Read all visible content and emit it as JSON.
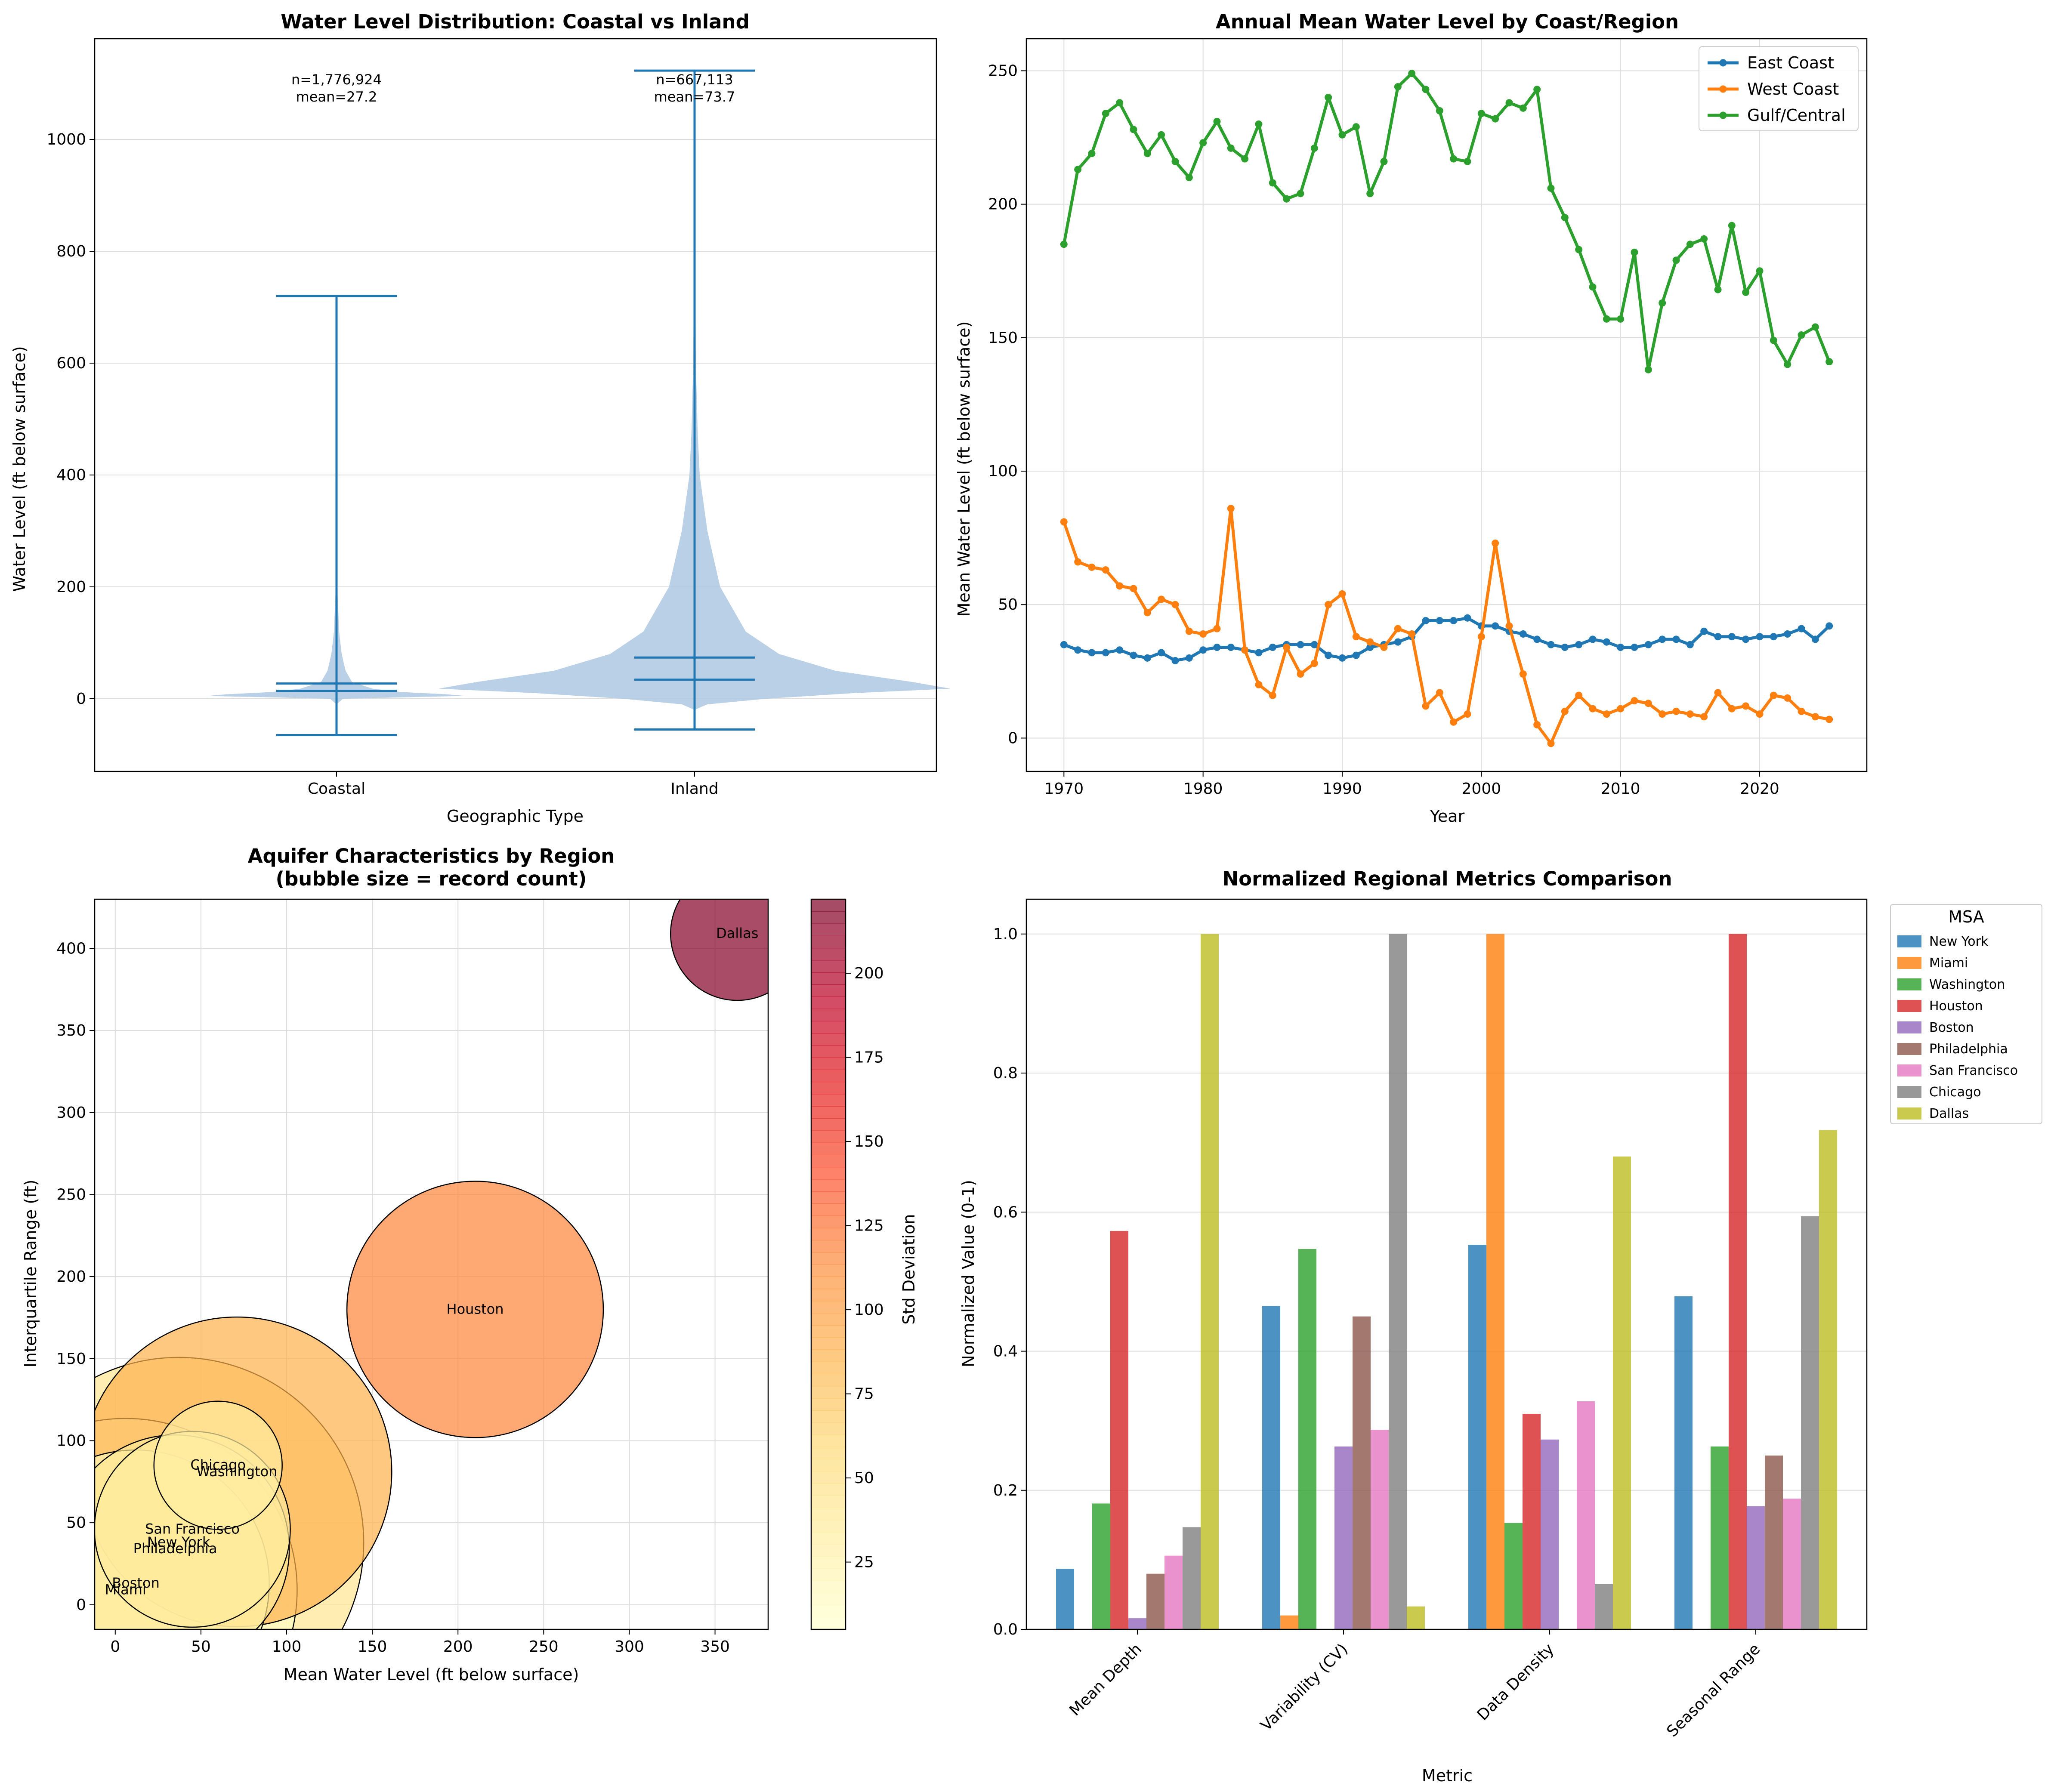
{
  "figure": {
    "panels": [
      {
        "title": "Water Level Distribution: Coastal vs Inland",
        "xlabel": "Geographic Type",
        "ylabel": "Water Level (ft below surface)",
        "yticks": [
          "0",
          "200",
          "400",
          "600",
          "800",
          "1000"
        ],
        "annotations": [
          {
            "line1": "n=1,776,924",
            "line2": "mean=27.2"
          },
          {
            "line1": "n=667,113",
            "line2": "mean=73.7"
          }
        ]
      },
      {
        "title": "Annual Mean Water Level by Coast/Region",
        "xlabel": "Year",
        "ylabel": "Mean Water Level (ft below surface)",
        "yticks": [
          "0",
          "50",
          "100",
          "150",
          "200",
          "250"
        ],
        "xticks": [
          "1970",
          "1980",
          "1990",
          "2000",
          "2010",
          "2020"
        ]
      },
      {
        "title_line1": "Aquifer Characteristics by Region",
        "title_line2": "(bubble size = record count)",
        "xlabel": "Mean Water Level (ft below surface)",
        "ylabel": "Interquartile Range (ft)",
        "colorbar_label": "Std Deviation",
        "xticks": [
          "0",
          "50",
          "100",
          "150",
          "200",
          "250",
          "300",
          "350"
        ],
        "yticks": [
          "0",
          "50",
          "100",
          "150",
          "200",
          "250",
          "300",
          "350",
          "400"
        ],
        "cbticks": [
          "25",
          "50",
          "75",
          "100",
          "125",
          "150",
          "175",
          "200"
        ]
      },
      {
        "title": "Normalized Regional Metrics Comparison",
        "xlabel": "Metric",
        "ylabel": "Normalized Value (0-1)",
        "legend_title": "MSA",
        "yticks": [
          "0.0",
          "0.2",
          "0.4",
          "0.6",
          "0.8",
          "1.0"
        ]
      }
    ]
  },
  "chart_data": [
    {
      "type": "violin",
      "title": "Water Level Distribution: Coastal vs Inland",
      "xlabel": "Geographic Type",
      "ylabel": "Water Level (ft below surface)",
      "categories": [
        "Coastal",
        "Inland"
      ],
      "ylim": [
        -130,
        1180
      ],
      "stats": [
        {
          "name": "Coastal",
          "n": "1,776,924",
          "mean": 27.2,
          "median": 14,
          "min": -65,
          "max": 720
        },
        {
          "name": "Inland",
          "n": "667,113",
          "mean": 73.7,
          "median": 34,
          "min": -55,
          "max": 1123
        }
      ],
      "grid": true,
      "body_color": "#aec8e2",
      "line_color": "#1f77b4"
    },
    {
      "type": "line",
      "title": "Annual Mean Water Level by Coast/Region",
      "xlabel": "Year",
      "ylabel": "Mean Water Level (ft below surface)",
      "xlim": [
        1967.3,
        2027.7
      ],
      "ylim": [
        -12.5,
        262
      ],
      "legend_position": "top-right",
      "x": [
        1970,
        1971,
        1972,
        1973,
        1974,
        1975,
        1976,
        1977,
        1978,
        1979,
        1980,
        1981,
        1982,
        1983,
        1984,
        1985,
        1986,
        1987,
        1988,
        1989,
        1990,
        1991,
        1992,
        1993,
        1994,
        1995,
        1996,
        1997,
        1998,
        1999,
        2000,
        2001,
        2002,
        2003,
        2004,
        2005,
        2006,
        2007,
        2008,
        2009,
        2010,
        2011,
        2012,
        2013,
        2014,
        2015,
        2016,
        2017,
        2018,
        2019,
        2020,
        2021,
        2022,
        2023,
        2024,
        2025
      ],
      "series": [
        {
          "name": "East Coast",
          "color": "#1f77b4",
          "values": [
            35,
            33,
            32,
            32,
            33,
            31,
            30,
            32,
            29,
            30,
            33,
            34,
            34,
            33,
            32,
            34,
            35,
            35,
            35,
            31,
            30,
            31,
            34,
            35,
            36,
            38,
            44,
            44,
            44,
            45,
            42,
            42,
            40,
            39,
            37,
            35,
            34,
            35,
            37,
            36,
            34,
            34,
            35,
            37,
            37,
            35,
            40,
            38,
            38,
            37,
            38,
            38,
            39,
            41,
            37,
            42
          ]
        },
        {
          "name": "West Coast",
          "color": "#ff7f0e",
          "values": [
            81,
            66,
            64,
            63,
            57,
            56,
            47,
            52,
            50,
            40,
            39,
            41,
            86,
            33,
            20,
            16,
            34,
            24,
            28,
            50,
            54,
            38,
            36,
            34,
            41,
            39,
            12,
            17,
            6,
            9,
            38,
            73,
            42,
            24,
            5,
            -2,
            10,
            16,
            11,
            9,
            11,
            14,
            13,
            9,
            10,
            9,
            8,
            17,
            11,
            12,
            9,
            16,
            15,
            10,
            8,
            7
          ]
        },
        {
          "name": "Gulf/Central",
          "color": "#2ca02c",
          "values": [
            185,
            213,
            219,
            234,
            238,
            228,
            219,
            226,
            216,
            210,
            223,
            231,
            221,
            217,
            230,
            208,
            202,
            204,
            221,
            240,
            226,
            229,
            204,
            216,
            244,
            249,
            243,
            235,
            217,
            216,
            234,
            232,
            238,
            236,
            243,
            206,
            195,
            183,
            169,
            157,
            157,
            182,
            138,
            163,
            179,
            185,
            187,
            168,
            192,
            167,
            175,
            149,
            140,
            151,
            154,
            141
          ]
        }
      ],
      "grid": true
    },
    {
      "type": "scatter",
      "title": "Aquifer Characteristics by Region (bubble size = record count)",
      "xlabel": "Mean Water Level (ft below surface)",
      "ylabel": "Interquartile Range (ft)",
      "colorbar_label": "Std Deviation",
      "xlim": [
        -12,
        381
      ],
      "ylim": [
        -15,
        430
      ],
      "color_range": [
        5,
        222
      ],
      "points": [
        {
          "label": "Dallas",
          "x": 363,
          "y": 409,
          "std": 220,
          "size_rel": 0.13
        },
        {
          "label": "Houston",
          "x": 210,
          "y": 180,
          "std": 118,
          "size_rel": 0.48
        },
        {
          "label": "Chicago",
          "x": 60,
          "y": 85,
          "std": 30,
          "size_rel": 0.12
        },
        {
          "label": "Washington",
          "x": 71,
          "y": 81,
          "std": 88,
          "size_rel": 0.7
        },
        {
          "label": "San Francisco",
          "x": 45,
          "y": 46,
          "std": 35,
          "size_rel": 0.28
        },
        {
          "label": "New York",
          "x": 37,
          "y": 38,
          "std": 42,
          "size_rel": 1.0
        },
        {
          "label": "Philadelphia",
          "x": 35,
          "y": 34,
          "std": 38,
          "size_rel": 0.38
        },
        {
          "label": "Boston",
          "x": 12,
          "y": 13,
          "std": 20,
          "size_rel": 0.52
        },
        {
          "label": "Miami",
          "x": 6,
          "y": 9,
          "std": 10,
          "size_rel": 0.86
        }
      ],
      "grid": true
    },
    {
      "type": "bar",
      "title": "Normalized Regional Metrics Comparison",
      "xlabel": "Metric",
      "ylabel": "Normalized Value (0-1)",
      "categories": [
        "Mean Depth",
        "Variability (CV)",
        "Data Density",
        "Seasonal Range"
      ],
      "ylim": [
        0,
        1.05
      ],
      "legend_title": "MSA",
      "legend_position": "outside right",
      "series": [
        {
          "name": "New York",
          "color": "#1f77b4",
          "values": [
            0.087,
            0.465,
            0.553,
            0.479
          ]
        },
        {
          "name": "Miami",
          "color": "#ff7f0e",
          "values": [
            0.0,
            0.02,
            1.0,
            0.0
          ]
        },
        {
          "name": "Washington",
          "color": "#2ca02c",
          "values": [
            0.181,
            0.547,
            0.153,
            0.263
          ]
        },
        {
          "name": "Houston",
          "color": "#d62728",
          "values": [
            0.573,
            0.0,
            0.31,
            1.0
          ]
        },
        {
          "name": "Boston",
          "color": "#9467bd",
          "values": [
            0.016,
            0.263,
            0.273,
            0.177
          ]
        },
        {
          "name": "Philadelphia",
          "color": "#8c564b",
          "values": [
            0.08,
            0.45,
            0.0,
            0.25
          ]
        },
        {
          "name": "San Francisco",
          "color": "#e377c2",
          "values": [
            0.106,
            0.287,
            0.328,
            0.188
          ]
        },
        {
          "name": "Chicago",
          "color": "#7f7f7f",
          "values": [
            0.147,
            1.0,
            0.065,
            0.594
          ]
        },
        {
          "name": "Dallas",
          "color": "#bcbd22",
          "values": [
            1.0,
            0.033,
            0.68,
            0.718
          ]
        }
      ],
      "grid": true
    }
  ]
}
